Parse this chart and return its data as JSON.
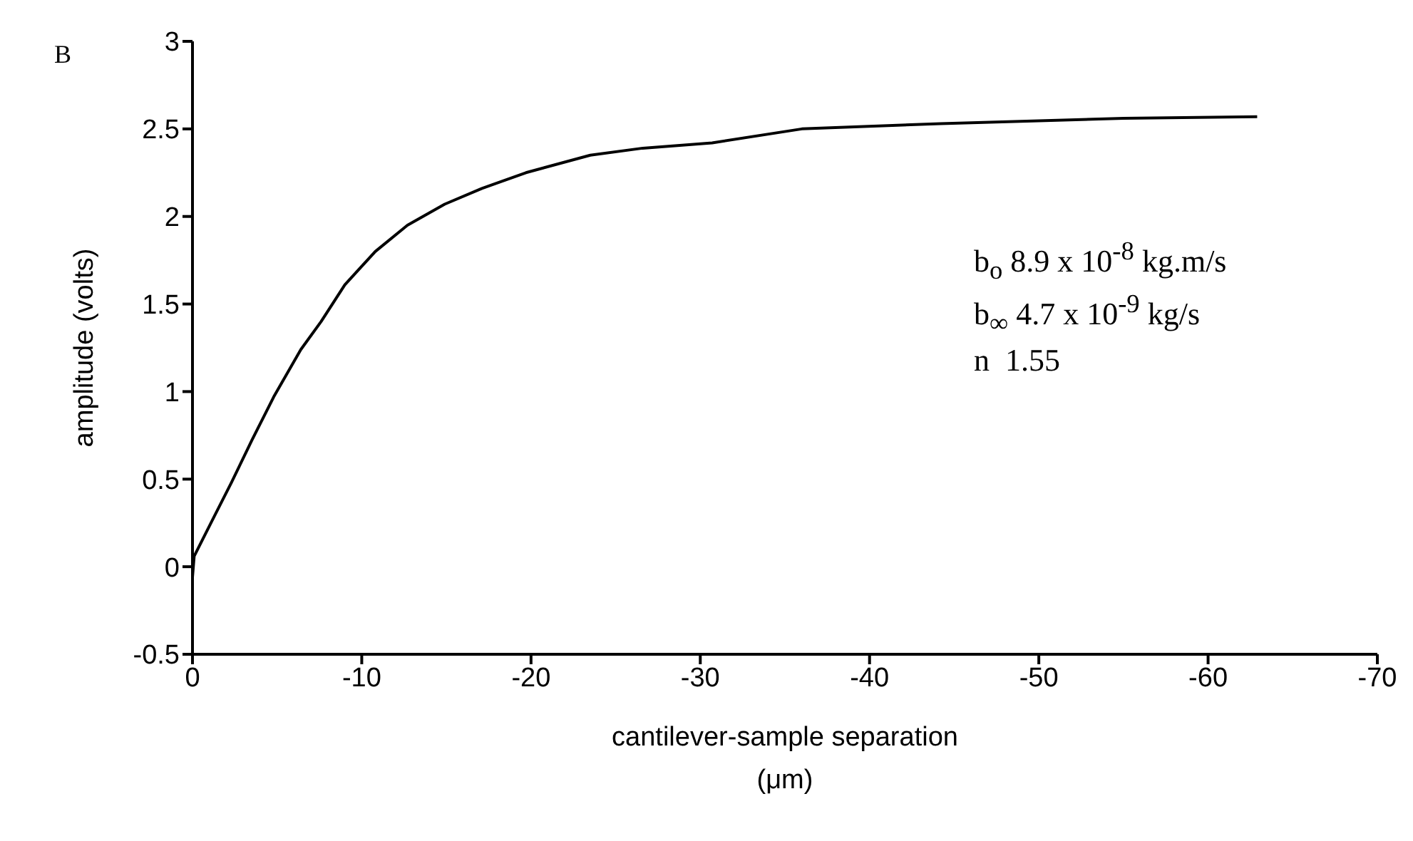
{
  "chart_data": {
    "type": "line",
    "xlabel": "cantilever-sample separation\n(μm)",
    "ylabel": "amplitude (volts)",
    "x": [
      0,
      -0.1,
      -1.3,
      -2.3,
      -3.5,
      -4.8,
      -6.4,
      -7.6,
      -9.0,
      -10.8,
      -12.7,
      -14.9,
      -17.1,
      -19.7,
      -23.5,
      -26.6,
      -30.7,
      -36.0,
      -44.2,
      -55.0,
      -62.9
    ],
    "series": [
      {
        "color": "#000000",
        "values": [
          -0.06,
          0.06,
          0.29,
          0.48,
          0.72,
          0.97,
          1.24,
          1.4,
          1.61,
          1.8,
          1.95,
          2.07,
          2.16,
          2.25,
          2.35,
          2.39,
          2.42,
          2.5,
          2.53,
          2.56,
          2.57
        ]
      }
    ],
    "xlim": [
      0,
      -70
    ],
    "xticks": [
      0,
      -10,
      -20,
      -30,
      -40,
      -50,
      -60,
      -70
    ],
    "ylim": [
      -0.5,
      3
    ],
    "yticks": [
      -0.5,
      0,
      0.5,
      1,
      1.5,
      2,
      2.5,
      3
    ],
    "grid": false,
    "legend": false,
    "marker": "none",
    "line_style": "solid",
    "annotations": [
      "B",
      "b$_{o}$ 8.9 x 10$^{-8}$ kg.m/s",
      "b$_{∞}$ 4.7 x 10$^{-9}$ kg/s",
      "n  1.55"
    ]
  }
}
